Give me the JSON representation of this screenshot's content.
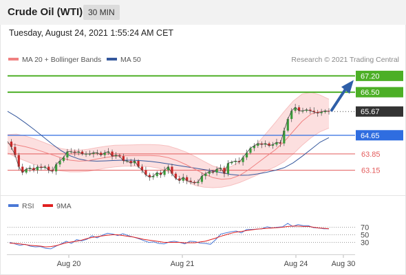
{
  "header": {
    "title": "Crude Oil (WTI)",
    "timeframe": "30 MIN"
  },
  "datetime": "Tuesday, August 24, 2021 1:55:24 AM CET",
  "copyright": "Research © 2021 Trading Central",
  "colors": {
    "ma20": "#f08080",
    "bollinger_fill": "#fcd9d9",
    "ma50": "#34579c",
    "resistance": "#4caf26",
    "support_strong": "#2f6de0",
    "support": "#e35a5a",
    "last_price": "#333333",
    "arrow": "#2f5fa8",
    "rsi": "#4a78d6",
    "rsi_ma": "#e02020"
  },
  "chart_data": [
    {
      "type": "line",
      "title": "",
      "x_ticks": [
        "Aug 20",
        "Aug 21",
        "Aug 24",
        "Aug 30"
      ],
      "legend": [
        "MA 20 + Bollinger Bands",
        "MA 50"
      ],
      "legend_position": "top-left",
      "ylim": [
        62.4,
        67.3
      ],
      "levels": [
        {
          "value": 67.2,
          "label": "67.20",
          "kind": "resistance"
        },
        {
          "value": 66.5,
          "label": "66.50",
          "kind": "resistance"
        },
        {
          "value": 65.67,
          "label": "65.67",
          "kind": "last"
        },
        {
          "value": 64.65,
          "label": "64.65",
          "kind": "pivot"
        },
        {
          "value": 63.85,
          "label": "63.85",
          "kind": "support"
        },
        {
          "value": 63.15,
          "label": "63.15",
          "kind": "support"
        }
      ],
      "series": [
        {
          "name": "MA 20 + Bollinger Bands",
          "values": [
            64.3,
            64.24,
            64.16,
            64.06,
            63.94,
            63.81,
            63.68,
            63.58,
            63.54,
            63.56,
            63.63,
            63.7,
            63.75,
            63.77,
            63.78,
            63.78,
            63.78,
            63.76,
            63.69,
            63.56,
            63.39,
            63.19,
            62.99,
            62.83,
            62.76,
            62.79,
            62.93,
            63.17,
            63.46,
            63.75,
            64.03,
            64.38,
            64.82,
            65.25,
            65.56,
            65.67,
            65.68
          ]
        },
        {
          "name": "MA 50",
          "values": [
            65.68,
            65.45,
            65.18,
            64.89,
            64.58,
            64.27,
            63.99,
            63.77,
            63.63,
            63.56,
            63.54,
            63.55,
            63.57,
            63.58,
            63.58,
            63.56,
            63.53,
            63.48,
            63.42,
            63.36,
            63.3,
            63.24,
            63.18,
            63.12,
            63.04,
            62.97,
            62.93,
            62.94,
            62.99,
            63.06,
            63.15,
            63.26,
            63.47,
            63.75,
            64.05,
            64.35,
            64.55
          ]
        },
        {
          "name": "Price",
          "values": [
            64.38,
            64.15,
            63.8,
            63.3,
            63.05,
            63.2,
            63.25,
            63.15,
            63.3,
            63.25,
            63.3,
            63.15,
            63.1,
            63.4,
            63.55,
            63.7,
            63.95,
            63.95,
            63.9,
            63.95,
            63.85,
            63.85,
            63.85,
            63.9,
            63.9,
            63.8,
            63.9,
            63.95,
            63.75,
            63.8,
            63.75,
            63.55,
            63.55,
            63.45,
            63.55,
            63.3,
            63.15,
            62.95,
            62.85,
            62.9,
            63.05,
            62.95,
            63.15,
            63.3,
            63.0,
            62.8,
            62.7,
            62.85,
            62.7,
            62.65,
            62.6,
            62.65,
            62.9,
            63.0,
            63.1,
            63.05,
            63.2,
            63.25,
            63.0,
            63.45,
            63.5,
            63.55,
            63.5,
            63.7,
            63.9,
            64.1,
            64.2,
            64.3,
            64.25,
            64.3,
            64.2,
            64.25,
            64.35,
            64.3,
            64.85,
            65.35,
            65.7,
            65.85,
            65.7,
            65.7,
            65.75,
            65.7,
            65.65,
            65.6,
            65.65,
            65.7,
            65.67
          ]
        }
      ],
      "bollinger_band": {
        "upper": [
          64.68,
          64.7,
          64.62,
          64.5,
          64.35,
          64.2,
          64.08,
          64.02,
          64.01,
          64.05,
          64.12,
          64.18,
          64.22,
          64.23,
          64.24,
          64.25,
          64.25,
          64.24,
          64.19,
          64.07,
          63.93,
          63.74,
          63.53,
          63.33,
          63.23,
          63.3,
          63.52,
          63.87,
          64.3,
          64.75,
          65.2,
          65.68,
          66.12,
          66.42,
          66.5,
          66.38,
          66.2
        ],
        "lower": [
          63.9,
          63.7,
          63.55,
          63.4,
          63.28,
          63.18,
          63.12,
          63.08,
          63.08,
          63.1,
          63.17,
          63.24,
          63.29,
          63.32,
          63.33,
          63.32,
          63.3,
          63.23,
          63.09,
          62.9,
          62.69,
          62.5,
          62.42,
          62.4,
          62.42,
          62.5,
          62.62,
          62.78,
          62.95,
          63.13,
          63.3,
          63.52,
          63.85,
          64.22,
          64.55,
          64.8,
          64.96
        ]
      },
      "forecast_target": 67.2
    },
    {
      "type": "line",
      "title": "",
      "legend": [
        "RSI",
        "9MA"
      ],
      "legend_position": "top-left",
      "ylim": [
        0,
        100
      ],
      "levels": [
        70,
        50,
        30
      ],
      "series": [
        {
          "name": "RSI",
          "values": [
            30,
            26,
            22,
            25,
            20,
            18,
            19,
            14,
            13,
            20,
            26,
            33,
            27,
            37,
            34,
            38,
            47,
            42,
            49,
            54,
            52,
            48,
            53,
            48,
            44,
            40,
            35,
            30,
            31,
            27,
            26,
            31,
            33,
            30,
            26,
            33,
            32,
            28,
            27,
            25,
            37,
            52,
            55,
            58,
            60,
            55,
            64,
            64,
            65,
            66,
            71,
            68,
            70,
            71,
            80,
            72,
            77,
            74,
            74,
            69,
            68,
            66,
            66
          ]
        },
        {
          "name": "9MA",
          "values": [
            28,
            27,
            26,
            24,
            22,
            21,
            20,
            18,
            19,
            21,
            25,
            29,
            31,
            33,
            36,
            40,
            43,
            45,
            47,
            49,
            50,
            50,
            48,
            46,
            44,
            41,
            38,
            36,
            34,
            32,
            30,
            30,
            30,
            30,
            29,
            29,
            29,
            31,
            33,
            37,
            41,
            46,
            50,
            54,
            57,
            59,
            61,
            63,
            65,
            66,
            67,
            68,
            69,
            70,
            72,
            73,
            73,
            72,
            72,
            70,
            68,
            67,
            66
          ]
        }
      ]
    }
  ]
}
